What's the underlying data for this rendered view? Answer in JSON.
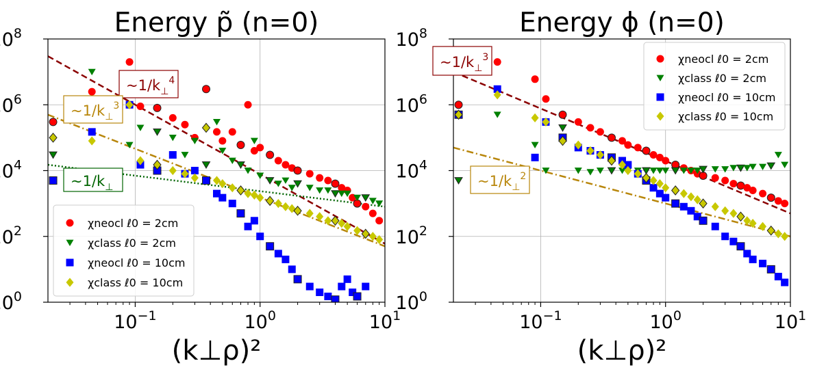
{
  "chart_data": [
    {
      "type": "scatter",
      "title": "Energy p̃ (n=0)",
      "xlabel": "(k⊥ρ)²",
      "ylabel": "",
      "xscale": "log",
      "yscale": "log",
      "xlim": [
        0.02,
        10
      ],
      "ylim": [
        1,
        100000000
      ],
      "grid": true,
      "legend_position": "lower-left",
      "xticks": [
        {
          "v": 0.1,
          "b": "10",
          "e": "−1"
        },
        {
          "v": 1,
          "b": "10",
          "e": "0"
        },
        {
          "v": 10,
          "b": "10",
          "e": "1"
        }
      ],
      "yticks": [
        {
          "v": 1,
          "b": "10",
          "e": "0"
        },
        {
          "v": 100,
          "b": "10",
          "e": "2"
        },
        {
          "v": 10000,
          "b": "10",
          "e": "4"
        },
        {
          "v": 1000000,
          "b": "10",
          "e": "6"
        },
        {
          "v": 100000000,
          "b": "10",
          "e": "8"
        }
      ],
      "series": [
        {
          "name": "χneocl ℓ0 = 2cm",
          "color": "#ff0000",
          "marker": "circle",
          "x": [
            0.022,
            0.045,
            0.09,
            0.11,
            0.15,
            0.2,
            0.25,
            0.3,
            0.37,
            0.45,
            0.5,
            0.6,
            0.7,
            0.8,
            0.9,
            1.0,
            1.2,
            1.4,
            1.6,
            1.8,
            2.0,
            2.5,
            3.0,
            3.5,
            4.0,
            4.5,
            5.0,
            5.5,
            6.0,
            7.0,
            8.0,
            9.0
          ],
          "y": [
            300000,
            2500000,
            20000000,
            900000,
            800000,
            400000,
            250000,
            100000,
            3000000,
            150000,
            80000,
            150000,
            60000,
            1000000,
            40000,
            50000,
            30000,
            20000,
            15000,
            12000,
            10000,
            8000,
            6000,
            5000,
            4000,
            3000,
            2500,
            1500,
            1000,
            800,
            500,
            300
          ]
        },
        {
          "name": "χclass ℓ0 = 2cm",
          "color": "#008000",
          "marker": "triangle",
          "x": [
            0.022,
            0.045,
            0.09,
            0.11,
            0.15,
            0.2,
            0.25,
            0.3,
            0.37,
            0.45,
            0.5,
            0.6,
            0.7,
            0.8,
            0.9,
            1.0,
            1.2,
            1.4,
            1.6,
            1.8,
            2.0,
            2.5,
            3.0,
            3.5,
            4.0,
            4.5,
            5.0,
            6.0,
            7.0,
            8.0,
            9.0
          ],
          "y": [
            30000,
            10000000,
            60000,
            200000,
            150000,
            100000,
            30000,
            80000,
            15000,
            300000,
            40000,
            20000,
            15000,
            10000,
            80000,
            7000,
            5000,
            4000,
            5000,
            3000,
            4000,
            3000,
            2500,
            2500,
            2000,
            2000,
            2000,
            1500,
            1500,
            1200,
            1000
          ]
        },
        {
          "name": "χneocl ℓ0 = 10cm",
          "color": "#0000ff",
          "marker": "square",
          "x": [
            0.022,
            0.045,
            0.09,
            0.11,
            0.15,
            0.2,
            0.25,
            0.3,
            0.37,
            0.45,
            0.5,
            0.6,
            0.7,
            0.8,
            0.9,
            1.0,
            1.2,
            1.4,
            1.6,
            1.8,
            2.0,
            2.5,
            3.0,
            3.5,
            4.0,
            4.5,
            5.0,
            5.5,
            6.0,
            7.0
          ],
          "y": [
            5000,
            150000,
            1000000,
            15000,
            10000,
            30000,
            8000,
            10000,
            5000,
            2000,
            1500,
            1000,
            500,
            200,
            300,
            100,
            50,
            30,
            20,
            10,
            5,
            3,
            2,
            1.5,
            1.2,
            3,
            5,
            2,
            1.5,
            3
          ]
        },
        {
          "name": "χclass ℓ0 = 10cm",
          "color": "#c8c800",
          "marker": "diamond",
          "x": [
            0.022,
            0.045,
            0.09,
            0.11,
            0.15,
            0.2,
            0.25,
            0.3,
            0.37,
            0.45,
            0.5,
            0.6,
            0.7,
            0.8,
            0.9,
            1.0,
            1.2,
            1.4,
            1.6,
            1.8,
            2.0,
            2.5,
            3.0,
            3.5,
            4.0,
            4.5,
            5.0,
            6.0,
            7.0,
            8.0,
            9.0
          ],
          "y": [
            100000,
            80000,
            1000000,
            20000,
            15000,
            10000,
            8000,
            6000,
            200000,
            5000,
            4000,
            3000,
            2500,
            2000,
            1800,
            1500,
            1200,
            1000,
            800,
            700,
            600,
            500,
            400,
            300,
            300,
            250,
            200,
            150,
            120,
            100,
            80
          ]
        }
      ],
      "fit_lines": [
        {
          "label": "~1/k⊥4",
          "base": "~1/k",
          "sub": "⊥",
          "sup": "4",
          "color": "#8b0000",
          "style": "dashed",
          "x": [
            0.02,
            10
          ],
          "y": [
            30000000,
            60
          ]
        },
        {
          "label": "~1/k⊥3",
          "base": "~1/k",
          "sub": "⊥",
          "sup": "3",
          "color": "#b8860b",
          "style": "dashdot",
          "x": [
            0.02,
            10
          ],
          "y": [
            500000,
            50
          ]
        },
        {
          "label": "~1/k⊥",
          "base": "~1/k",
          "sub": "⊥",
          "sup": "",
          "color": "#006400",
          "style": "dotted",
          "x": [
            0.02,
            10
          ],
          "y": [
            15000,
            800
          ]
        }
      ]
    },
    {
      "type": "scatter",
      "title": "Energy ϕ (n=0)",
      "xlabel": "(k⊥ρ)²",
      "ylabel": "",
      "xscale": "log",
      "yscale": "log",
      "xlim": [
        0.02,
        10
      ],
      "ylim": [
        1,
        100000000
      ],
      "grid": true,
      "legend_position": "upper-right",
      "xticks": [
        {
          "v": 0.1,
          "b": "10",
          "e": "−1"
        },
        {
          "v": 1,
          "b": "10",
          "e": "0"
        },
        {
          "v": 10,
          "b": "10",
          "e": "1"
        }
      ],
      "yticks": [
        {
          "v": 1,
          "b": "10",
          "e": "0"
        },
        {
          "v": 100,
          "b": "10",
          "e": "2"
        },
        {
          "v": 10000,
          "b": "10",
          "e": "4"
        },
        {
          "v": 1000000,
          "b": "10",
          "e": "6"
        },
        {
          "v": 100000000,
          "b": "10",
          "e": "8"
        }
      ],
      "series": [
        {
          "name": "χneocl ℓ0 = 2cm",
          "color": "#ff0000",
          "marker": "circle",
          "x": [
            0.022,
            0.045,
            0.09,
            0.11,
            0.15,
            0.2,
            0.25,
            0.3,
            0.37,
            0.45,
            0.5,
            0.6,
            0.7,
            0.8,
            0.9,
            1.0,
            1.2,
            1.4,
            1.6,
            1.8,
            2.0,
            2.5,
            3.0,
            3.5,
            4.0,
            4.5,
            5.0,
            6.0,
            7.0,
            8.0,
            9.0
          ],
          "y": [
            1000000,
            20000000,
            6000000,
            1500000,
            500000,
            300000,
            200000,
            150000,
            100000,
            80000,
            60000,
            50000,
            40000,
            30000,
            25000,
            20000,
            15000,
            12000,
            10000,
            8000,
            7000,
            6000,
            5000,
            4000,
            3500,
            3000,
            2500,
            2000,
            1500,
            1200,
            1000
          ]
        },
        {
          "name": "χclass ℓ0 = 2cm",
          "color": "#008000",
          "marker": "triangle",
          "x": [
            0.022,
            0.045,
            0.09,
            0.11,
            0.15,
            0.2,
            0.25,
            0.3,
            0.37,
            0.45,
            0.5,
            0.6,
            0.7,
            0.8,
            0.9,
            1.0,
            1.2,
            1.4,
            1.6,
            1.8,
            2.0,
            2.5,
            3.0,
            3.5,
            4.0,
            4.5,
            5.0,
            6.0,
            7.0,
            8.0,
            9.0
          ],
          "y": [
            5000,
            500000,
            60000,
            10000,
            200000,
            10000,
            9000,
            10000,
            10000,
            10000,
            10000,
            10000,
            10000,
            10000,
            10000,
            10000,
            10000,
            10000,
            10000,
            10000,
            11000,
            11000,
            11000,
            12000,
            12000,
            12000,
            13000,
            13000,
            14000,
            30000,
            15000
          ]
        },
        {
          "name": "χneocl ℓ0 = 10cm",
          "color": "#0000ff",
          "marker": "square",
          "x": [
            0.022,
            0.045,
            0.09,
            0.11,
            0.15,
            0.2,
            0.25,
            0.3,
            0.37,
            0.45,
            0.5,
            0.6,
            0.7,
            0.8,
            0.9,
            1.0,
            1.2,
            1.4,
            1.6,
            1.8,
            2.0,
            2.5,
            3.0,
            3.5,
            4.0,
            4.5,
            5.0,
            6.0,
            7.0,
            8.0,
            9.0
          ],
          "y": [
            500000,
            3000000,
            25000,
            300000,
            100000,
            50000,
            40000,
            30000,
            25000,
            20000,
            15000,
            8000,
            5000,
            3000,
            2000,
            1500,
            1000,
            800,
            600,
            400,
            300,
            200,
            100,
            70,
            50,
            30,
            20,
            15,
            10,
            6,
            4
          ]
        },
        {
          "name": "χclass ℓ0 = 10cm",
          "color": "#c8c800",
          "marker": "diamond",
          "x": [
            0.022,
            0.045,
            0.09,
            0.11,
            0.15,
            0.2,
            0.25,
            0.3,
            0.37,
            0.45,
            0.5,
            0.6,
            0.7,
            0.8,
            0.9,
            1.0,
            1.2,
            1.4,
            1.6,
            1.8,
            2.0,
            2.5,
            3.0,
            3.5,
            4.0,
            4.5,
            5.0,
            6.0,
            7.0,
            8.0,
            9.0
          ],
          "y": [
            500000,
            2000000,
            400000,
            300000,
            80000,
            60000,
            40000,
            30000,
            20000,
            15000,
            10000,
            8000,
            6000,
            5000,
            4000,
            3000,
            2500,
            2000,
            1600,
            1300,
            1000,
            800,
            600,
            500,
            400,
            300,
            250,
            200,
            150,
            120,
            100
          ]
        }
      ],
      "fit_lines": [
        {
          "label": "~1/k⊥3",
          "base": "~1/k",
          "sub": "⊥",
          "sup": "3",
          "color": "#8b0000",
          "style": "dashed",
          "x": [
            0.02,
            10
          ],
          "y": [
            10000000,
            500
          ]
        },
        {
          "label": "~1/k⊥2",
          "base": "~1/k",
          "sub": "⊥",
          "sup": "2",
          "color": "#b8860b",
          "style": "dashdot",
          "x": [
            0.02,
            10
          ],
          "y": [
            50000,
            100
          ]
        }
      ]
    }
  ]
}
